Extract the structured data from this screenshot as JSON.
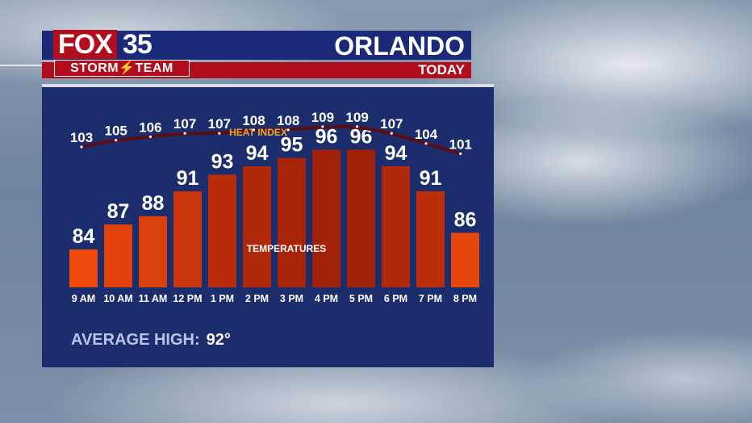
{
  "header": {
    "brand_fox": "FOX",
    "brand_number": "35",
    "brand_sub": "STORM⚡TEAM",
    "city": "ORLANDO",
    "period": "TODAY"
  },
  "average": {
    "label": "AVERAGE HIGH:",
    "value": "92°"
  },
  "colors": {
    "panel": "#1c2d6e",
    "header_blue": "#1b2a78",
    "header_red": "#b10d1d",
    "heat_line": "#5a0e12",
    "heat_label": "#f5a623"
  },
  "chart_data": {
    "type": "bar",
    "categories": [
      "9 AM",
      "10 AM",
      "11 AM",
      "12 PM",
      "1 PM",
      "2 PM",
      "3 PM",
      "4 PM",
      "5 PM",
      "6 PM",
      "7 PM",
      "8 PM"
    ],
    "series": [
      {
        "name": "TEMPERATURES",
        "type": "bar",
        "values": [
          84,
          87,
          88,
          91,
          93,
          94,
          95,
          96,
          96,
          94,
          91,
          86
        ]
      },
      {
        "name": "HEAT INDEX",
        "type": "line",
        "values": [
          103,
          105,
          106,
          107,
          107,
          108,
          108,
          109,
          109,
          107,
          104,
          101
        ]
      }
    ],
    "bar_colors": [
      "#ef4a0c",
      "#e2410b",
      "#d9400b",
      "#c9360b",
      "#b92c0a",
      "#b0290a",
      "#a72409",
      "#a22209",
      "#a22209",
      "#b0290a",
      "#bc2e0a",
      "#e8470c"
    ],
    "grid": false
  }
}
